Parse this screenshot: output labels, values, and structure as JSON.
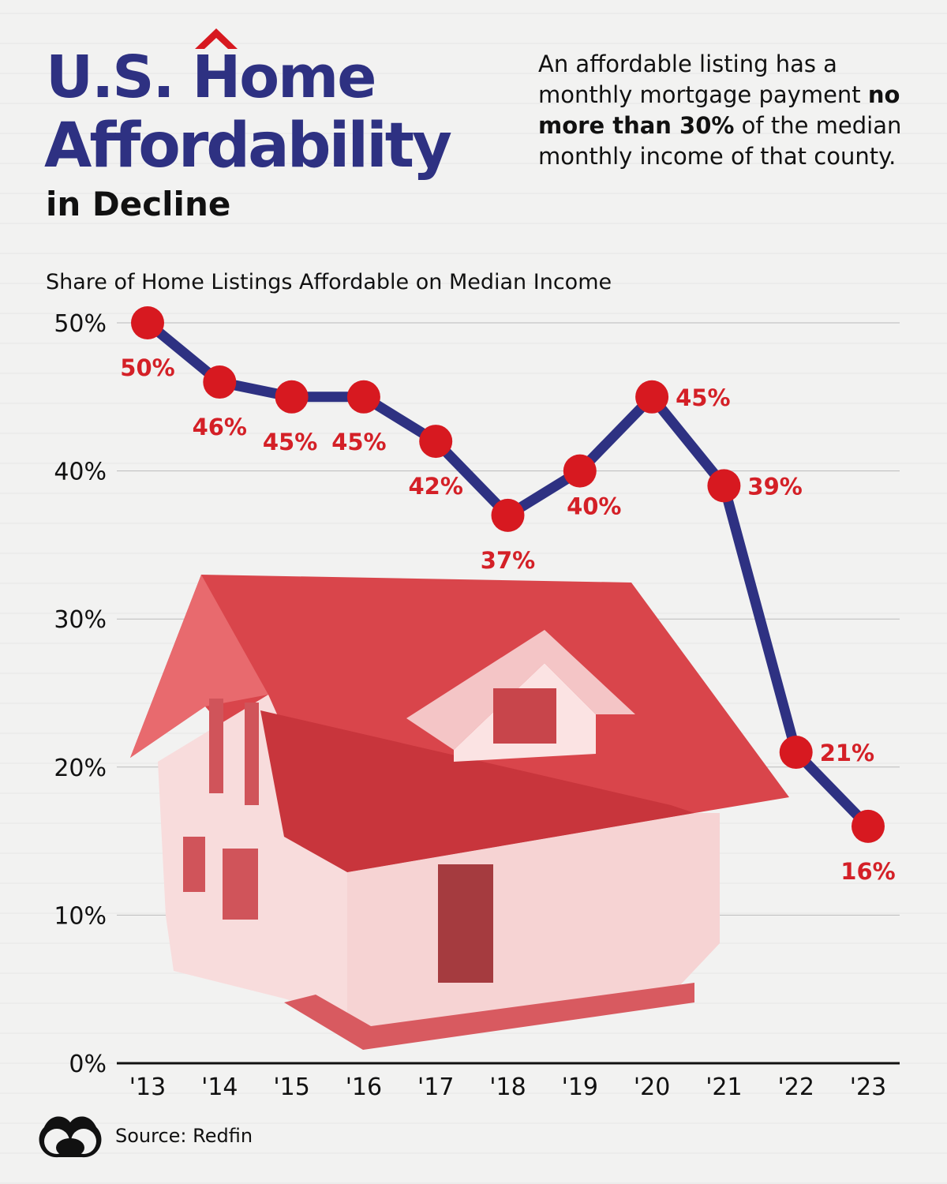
{
  "header": {
    "title_line1": "U.S. Home",
    "title_line2": "Affordability",
    "title_line3": "in Decline",
    "description_pre": "An affordable listing has a monthly mortgage payment ",
    "description_bold": "no more than 30%",
    "description_post": " of the median monthly income of that county."
  },
  "chart_data": {
    "type": "line",
    "title": "Share of Home Listings Affordable on Median Income",
    "categories": [
      "'13",
      "'14",
      "'15",
      "'16",
      "'17",
      "'18",
      "'19",
      "'20",
      "'21",
      "'22",
      "'23"
    ],
    "values": [
      50,
      46,
      45,
      45,
      42,
      37,
      40,
      45,
      39,
      21,
      16
    ],
    "data_labels": [
      "50%",
      "46%",
      "45%",
      "45%",
      "42%",
      "37%",
      "40%",
      "45%",
      "39%",
      "21%",
      "16%"
    ],
    "yticks": [
      "0%",
      "10%",
      "20%",
      "30%",
      "40%",
      "50%"
    ],
    "ylim": [
      0,
      50
    ],
    "grid": true,
    "colors": {
      "line": "#2e3182",
      "marker": "#d71920",
      "label": "#d42027"
    }
  },
  "footer": {
    "source": "Source: Redfin",
    "logo_icon": "visual-capitalist-logo"
  }
}
